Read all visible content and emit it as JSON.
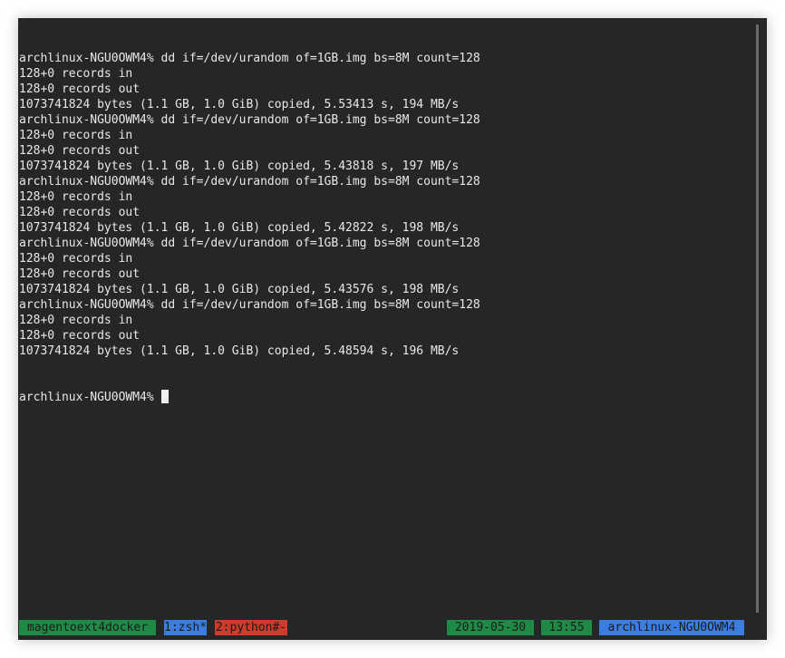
{
  "terminal": {
    "lines": [
      "archlinux-NGU0OWM4% dd if=/dev/urandom of=1GB.img bs=8M count=128",
      "128+0 records in",
      "128+0 records out",
      "1073741824 bytes (1.1 GB, 1.0 GiB) copied, 5.53413 s, 194 MB/s",
      "archlinux-NGU0OWM4% dd if=/dev/urandom of=1GB.img bs=8M count=128",
      "128+0 records in",
      "128+0 records out",
      "1073741824 bytes (1.1 GB, 1.0 GiB) copied, 5.43818 s, 197 MB/s",
      "archlinux-NGU0OWM4% dd if=/dev/urandom of=1GB.img bs=8M count=128",
      "128+0 records in",
      "128+0 records out",
      "1073741824 bytes (1.1 GB, 1.0 GiB) copied, 5.42822 s, 198 MB/s",
      "archlinux-NGU0OWM4% dd if=/dev/urandom of=1GB.img bs=8M count=128",
      "128+0 records in",
      "128+0 records out",
      "1073741824 bytes (1.1 GB, 1.0 GiB) copied, 5.43576 s, 198 MB/s",
      "archlinux-NGU0OWM4% dd if=/dev/urandom of=1GB.img bs=8M count=128",
      "128+0 records in",
      "128+0 records out",
      "1073741824 bytes (1.1 GB, 1.0 GiB) copied, 5.48594 s, 196 MB/s"
    ],
    "prompt": "archlinux-NGU0OWM4% "
  },
  "statusbar": {
    "session": "magentoext4docker",
    "windows": [
      {
        "label": "1:zsh*",
        "active": true
      },
      {
        "label": "2:python#-",
        "active": false
      }
    ],
    "date": "2019-05-30",
    "time": "13:55",
    "host": "archlinux-NGU0OWM4"
  },
  "colors": {
    "background": "#252628",
    "text": "#e8e8e8",
    "green": "#1e8a45",
    "blue": "#3c7ee0",
    "red": "#cd3b2d"
  }
}
